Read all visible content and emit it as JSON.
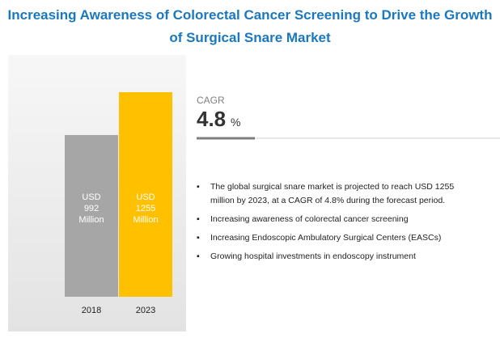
{
  "title": "Increasing Awareness of Colorectal Cancer Screening to Drive the Growth of Surgical Snare Market",
  "chart_data": {
    "type": "bar",
    "categories": [
      "2018",
      "2023"
    ],
    "values": [
      992,
      1255
    ],
    "value_labels": [
      "USD 992 Million",
      "USD 1255 Million"
    ],
    "colors": [
      "#a6a6a6",
      "#ffc000"
    ]
  },
  "cagr": {
    "label": "CAGR",
    "value": 4.8,
    "unit": "%"
  },
  "bullets": [
    "The global surgical snare market is projected to reach USD 1255 million by 2023, at a CAGR of 4.8% during the forecast period.",
    "Increasing awareness of colorectal cancer screening",
    "Increasing Endoscopic Ambulatory Surgical Centers (EASCs)",
    "Growing hospital investments in endoscopy instrument"
  ]
}
